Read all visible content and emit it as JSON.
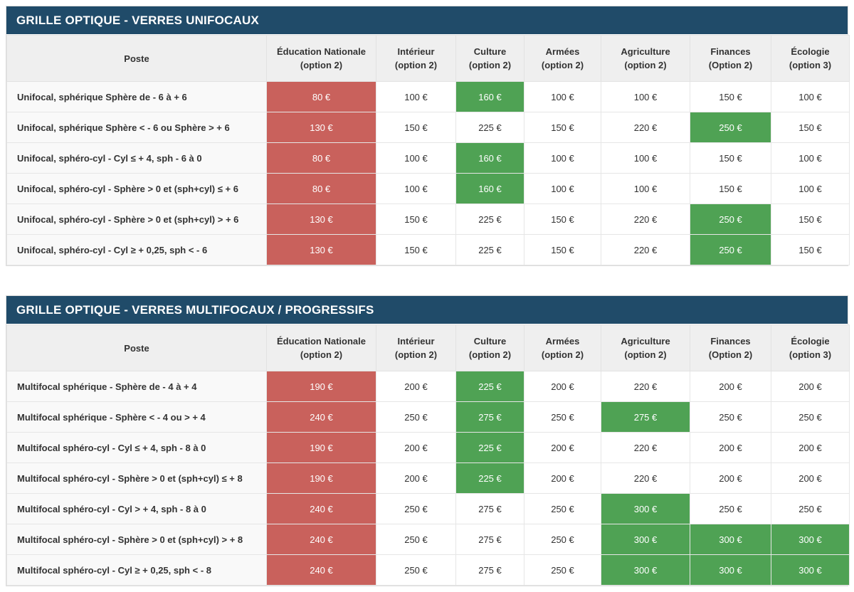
{
  "colors": {
    "title_bar": "#204b69",
    "red": "#c9615c",
    "green": "#4fa254",
    "header_bg": "#efefef",
    "label_bg": "#f9f9f9"
  },
  "tables": [
    {
      "title": "GRILLE OPTIQUE - VERRES UNIFOCAUX",
      "columns": [
        {
          "key": "poste",
          "label": "Poste",
          "sub": ""
        },
        {
          "key": "education-nationale",
          "label": "Éducation Nationale",
          "sub": "(option 2)"
        },
        {
          "key": "interieur",
          "label": "Intérieur",
          "sub": "(option 2)"
        },
        {
          "key": "culture",
          "label": "Culture",
          "sub": "(option 2)"
        },
        {
          "key": "armees",
          "label": "Armées",
          "sub": "(option 2)"
        },
        {
          "key": "agriculture",
          "label": "Agriculture",
          "sub": "(option 2)"
        },
        {
          "key": "finances",
          "label": "Finances",
          "sub": "(Option 2)"
        },
        {
          "key": "ecologie",
          "label": "Écologie",
          "sub": "(option 3)"
        }
      ],
      "rows": [
        {
          "label": "Unifocal, sphérique Sphère de - 6 à + 6",
          "cells": [
            {
              "value": "80 €",
              "highlight": "red"
            },
            {
              "value": "100 €"
            },
            {
              "value": "160 €",
              "highlight": "green"
            },
            {
              "value": "100 €"
            },
            {
              "value": "100 €"
            },
            {
              "value": "150 €"
            },
            {
              "value": "100 €"
            }
          ]
        },
        {
          "label": "Unifocal, sphérique Sphère < - 6 ou Sphère > + 6",
          "cells": [
            {
              "value": "130 €",
              "highlight": "red"
            },
            {
              "value": "150 €"
            },
            {
              "value": "225 €"
            },
            {
              "value": "150 €"
            },
            {
              "value": "220 €"
            },
            {
              "value": "250 €",
              "highlight": "green"
            },
            {
              "value": "150 €"
            }
          ]
        },
        {
          "label": "Unifocal, sphéro-cyl - Cyl ≤ + 4, sph - 6 à 0",
          "cells": [
            {
              "value": "80 €",
              "highlight": "red"
            },
            {
              "value": "100 €"
            },
            {
              "value": "160 €",
              "highlight": "green"
            },
            {
              "value": "100 €"
            },
            {
              "value": "100 €"
            },
            {
              "value": "150 €"
            },
            {
              "value": "100 €"
            }
          ]
        },
        {
          "label": "Unifocal, sphéro-cyl - Sphère > 0 et (sph+cyl) ≤ + 6",
          "cells": [
            {
              "value": "80 €",
              "highlight": "red"
            },
            {
              "value": "100 €"
            },
            {
              "value": "160 €",
              "highlight": "green"
            },
            {
              "value": "100 €"
            },
            {
              "value": "100 €"
            },
            {
              "value": "150 €"
            },
            {
              "value": "100 €"
            }
          ]
        },
        {
          "label": "Unifocal, sphéro-cyl - Sphère > 0 et (sph+cyl) > + 6",
          "cells": [
            {
              "value": "130 €",
              "highlight": "red"
            },
            {
              "value": "150 €"
            },
            {
              "value": "225 €"
            },
            {
              "value": "150 €"
            },
            {
              "value": "220 €"
            },
            {
              "value": "250 €",
              "highlight": "green"
            },
            {
              "value": "150 €"
            }
          ]
        },
        {
          "label": "Unifocal, sphéro-cyl - Cyl ≥ + 0,25, sph < - 6",
          "cells": [
            {
              "value": "130 €",
              "highlight": "red"
            },
            {
              "value": "150 €"
            },
            {
              "value": "225 €"
            },
            {
              "value": "150 €"
            },
            {
              "value": "220 €"
            },
            {
              "value": "250 €",
              "highlight": "green"
            },
            {
              "value": "150 €"
            }
          ]
        }
      ]
    },
    {
      "title": "GRILLE OPTIQUE - VERRES MULTIFOCAUX / PROGRESSIFS",
      "columns": [
        {
          "key": "poste",
          "label": "Poste",
          "sub": ""
        },
        {
          "key": "education-nationale",
          "label": "Éducation Nationale",
          "sub": "(option 2)"
        },
        {
          "key": "interieur",
          "label": "Intérieur",
          "sub": "(option 2)"
        },
        {
          "key": "culture",
          "label": "Culture",
          "sub": "(option 2)"
        },
        {
          "key": "armees",
          "label": "Armées",
          "sub": "(option 2)"
        },
        {
          "key": "agriculture",
          "label": "Agriculture",
          "sub": "(option 2)"
        },
        {
          "key": "finances",
          "label": "Finances",
          "sub": "(Option 2)"
        },
        {
          "key": "ecologie",
          "label": "Écologie",
          "sub": "(option 3)"
        }
      ],
      "rows": [
        {
          "label": "Multifocal sphérique - Sphère de - 4 à + 4",
          "cells": [
            {
              "value": "190 €",
              "highlight": "red"
            },
            {
              "value": "200 €"
            },
            {
              "value": "225 €",
              "highlight": "green"
            },
            {
              "value": "200 €"
            },
            {
              "value": "220 €"
            },
            {
              "value": "200 €"
            },
            {
              "value": "200 €"
            }
          ]
        },
        {
          "label": "Multifocal sphérique - Sphère < - 4 ou > + 4",
          "cells": [
            {
              "value": "240 €",
              "highlight": "red"
            },
            {
              "value": "250 €"
            },
            {
              "value": "275 €",
              "highlight": "green"
            },
            {
              "value": "250 €"
            },
            {
              "value": "275 €",
              "highlight": "green"
            },
            {
              "value": "250 €"
            },
            {
              "value": "250 €"
            }
          ]
        },
        {
          "label": "Multifocal sphéro-cyl - Cyl ≤ + 4, sph - 8 à 0",
          "cells": [
            {
              "value": "190 €",
              "highlight": "red"
            },
            {
              "value": "200 €"
            },
            {
              "value": "225 €",
              "highlight": "green"
            },
            {
              "value": "200 €"
            },
            {
              "value": "220 €"
            },
            {
              "value": "200 €"
            },
            {
              "value": "200 €"
            }
          ]
        },
        {
          "label": "Multifocal sphéro-cyl - Sphère > 0 et (sph+cyl) ≤ + 8",
          "cells": [
            {
              "value": "190 €",
              "highlight": "red"
            },
            {
              "value": "200 €"
            },
            {
              "value": "225 €",
              "highlight": "green"
            },
            {
              "value": "200 €"
            },
            {
              "value": "220 €"
            },
            {
              "value": "200 €"
            },
            {
              "value": "200 €"
            }
          ]
        },
        {
          "label": "Multifocal sphéro-cyl - Cyl > + 4, sph - 8 à 0",
          "cells": [
            {
              "value": "240 €",
              "highlight": "red"
            },
            {
              "value": "250 €"
            },
            {
              "value": "275 €"
            },
            {
              "value": "250 €"
            },
            {
              "value": "300 €",
              "highlight": "green"
            },
            {
              "value": "250 €"
            },
            {
              "value": "250 €"
            }
          ]
        },
        {
          "label": "Multifocal sphéro-cyl - Sphère > 0 et (sph+cyl) > + 8",
          "cells": [
            {
              "value": "240 €",
              "highlight": "red"
            },
            {
              "value": "250 €"
            },
            {
              "value": "275 €"
            },
            {
              "value": "250 €"
            },
            {
              "value": "300 €",
              "highlight": "green"
            },
            {
              "value": "300 €",
              "highlight": "green"
            },
            {
              "value": "300 €",
              "highlight": "green"
            }
          ]
        },
        {
          "label": "Multifocal sphéro-cyl - Cyl ≥ + 0,25, sph < - 8",
          "cells": [
            {
              "value": "240 €",
              "highlight": "red"
            },
            {
              "value": "250 €"
            },
            {
              "value": "275 €"
            },
            {
              "value": "250 €"
            },
            {
              "value": "300 €",
              "highlight": "green"
            },
            {
              "value": "300 €",
              "highlight": "green"
            },
            {
              "value": "300 €",
              "highlight": "green"
            }
          ]
        }
      ]
    }
  ]
}
